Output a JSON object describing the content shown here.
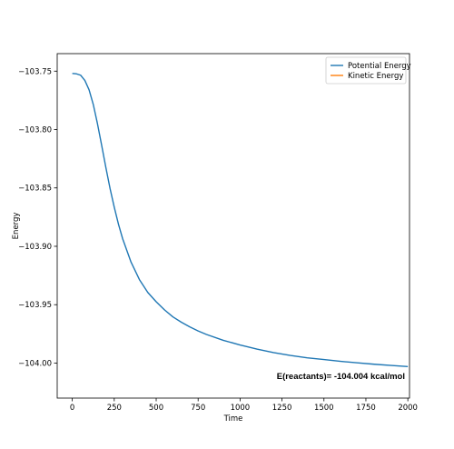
{
  "chart_data": {
    "type": "line",
    "title": "",
    "xlabel": "Time",
    "ylabel": "Energy",
    "xlim": [
      -90,
      2010
    ],
    "ylim": [
      -104.03,
      -103.735
    ],
    "xticks": [
      0,
      250,
      500,
      750,
      1000,
      1250,
      1500,
      1750,
      2000
    ],
    "xtick_labels": [
      "0",
      "250",
      "500",
      "750",
      "1000",
      "1250",
      "1500",
      "1750",
      "2000"
    ],
    "yticks": [
      -103.75,
      -103.8,
      -103.85,
      -103.9,
      -103.95,
      -104.0
    ],
    "ytick_labels": [
      "−103.75",
      "−103.80",
      "−103.85",
      "−103.90",
      "−103.95",
      "−104.00"
    ],
    "grid": false,
    "legend_position": "top-right",
    "series": [
      {
        "name": "Potential Energy",
        "color": "#1f77b4",
        "x": [
          0,
          25,
          50,
          75,
          100,
          125,
          150,
          175,
          200,
          225,
          250,
          275,
          300,
          350,
          400,
          450,
          500,
          550,
          600,
          650,
          700,
          750,
          800,
          900,
          1000,
          1100,
          1200,
          1300,
          1400,
          1500,
          1600,
          1700,
          1800,
          1900,
          2000
        ],
        "y": [
          -103.752,
          -103.7523,
          -103.7535,
          -103.758,
          -103.766,
          -103.7785,
          -103.795,
          -103.8135,
          -103.8325,
          -103.8505,
          -103.8665,
          -103.881,
          -103.8935,
          -103.9135,
          -103.9285,
          -103.9395,
          -103.9475,
          -103.9545,
          -103.9605,
          -103.965,
          -103.969,
          -103.9725,
          -103.9755,
          -103.9805,
          -103.9845,
          -103.988,
          -103.991,
          -103.9935,
          -103.9955,
          -103.997,
          -103.9985,
          -103.9998,
          -104.001,
          -104.002,
          -104.003
        ]
      },
      {
        "name": "Kinetic Energy",
        "color": "#ff7f0e",
        "x": [],
        "y": []
      }
    ],
    "annotations": [
      {
        "text": "E(reactants)= -104.004 kcal/mol"
      }
    ]
  }
}
